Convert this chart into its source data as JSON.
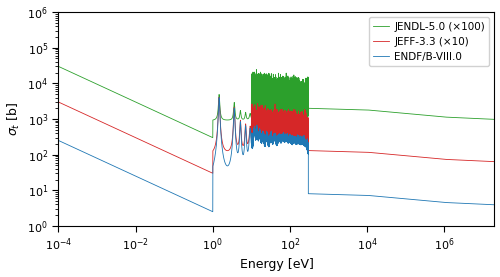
{
  "xlabel": "Energy [eV]",
  "ylabel": "$\\sigma_t$ [b]",
  "xlim": [
    0.0001,
    20000000.0
  ],
  "ylim": [
    1,
    1000000.0
  ],
  "legend": [
    "JENDL-5.0 (×100)",
    "JEFF-3.3 (×10)",
    "ENDF/B-VIII.0"
  ],
  "colors": [
    "#2ca02c",
    "#d62728",
    "#1f77b4"
  ],
  "figsize": [
    5.0,
    2.77
  ],
  "dpi": 100,
  "thermal_vals": [
    30000.0,
    3000.0,
    250.0
  ],
  "smooth_base": [
    900,
    90,
    9
  ],
  "fast_base": [
    2000,
    130,
    8
  ],
  "high_base": [
    500,
    50,
    5
  ],
  "res_end_eV": 300,
  "noise_end_eV": 300
}
